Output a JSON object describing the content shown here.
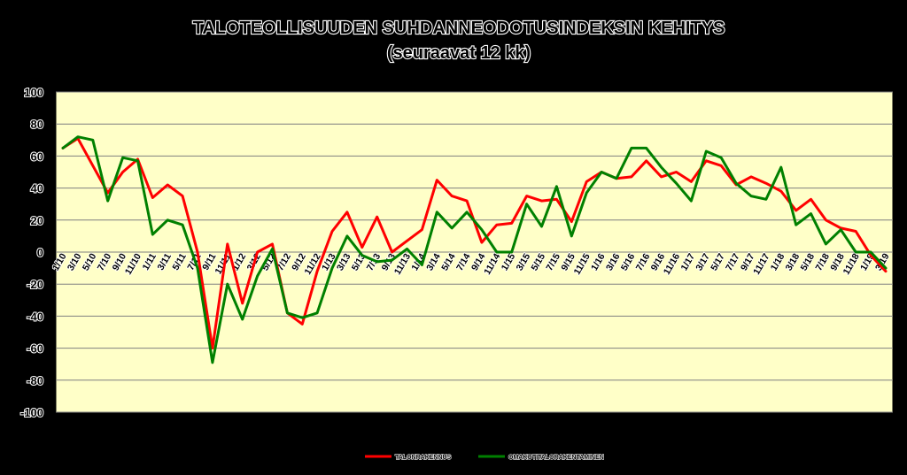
{
  "colors": {
    "background": "#000000",
    "plot_area": "#ffffc8",
    "grid": "#7f7f7f",
    "series_red": "#ff0000",
    "series_green": "#008000"
  },
  "chart_data": {
    "type": "line",
    "title": "TALOTEOLLISUUDEN SUHDANNEODOTUSINDEKSIN KEHITYS",
    "subtitle": "(seuraavat 12 kk)",
    "ylim": [
      -100,
      100
    ],
    "y_ticks": [
      100,
      80,
      60,
      40,
      20,
      0,
      -20,
      -40,
      -60,
      -80,
      -100
    ],
    "grid": true,
    "legend_position": "bottom",
    "x_labels": [
      "1/10",
      "3/10",
      "5/10",
      "7/10",
      "9/10",
      "11/10",
      "1/11",
      "3/11",
      "5/11",
      "7/11",
      "9/11",
      "11/11",
      "1/12",
      "3/12",
      "5/12",
      "7/12",
      "9/12",
      "11/12",
      "1/13",
      "3/13",
      "5/13",
      "7/13",
      "9/13",
      "11/13",
      "1/14",
      "3/14",
      "5/14",
      "7/14",
      "9/14",
      "11/14",
      "1/15",
      "3/15",
      "5/15",
      "7/15",
      "9/15",
      "11/15",
      "1/16",
      "3/16",
      "5/16",
      "7/16",
      "9/16",
      "11/16",
      "1/17",
      "3/17",
      "5/17",
      "7/17",
      "9/17",
      "11/17",
      "1/18",
      "3/18",
      "5/18",
      "7/18",
      "9/18",
      "11/18",
      "1/19",
      "3/19"
    ],
    "series": [
      {
        "name": "TALONRAKENNUS",
        "color": "#ff0000",
        "values": [
          65,
          71,
          54,
          37,
          50,
          58,
          34,
          42,
          35,
          0,
          -60,
          5,
          -32,
          0,
          5,
          -38,
          -45,
          -12,
          13,
          25,
          3,
          22,
          0,
          7,
          14,
          45,
          35,
          32,
          6,
          17,
          18,
          35,
          32,
          33,
          19,
          44,
          50,
          46,
          47,
          57,
          47,
          50,
          44,
          57,
          54,
          42,
          47,
          43,
          38,
          26,
          33,
          20,
          15,
          13,
          -2,
          -12
        ]
      },
      {
        "name": "OMAKOTITALORAKENTAMINEN",
        "color": "#008000",
        "values": [
          65,
          72,
          70,
          32,
          59,
          57,
          11,
          20,
          17,
          -10,
          -69,
          -20,
          -42,
          -15,
          2,
          -38,
          -41,
          -38,
          -10,
          10,
          -2,
          -6,
          -5,
          2,
          -8,
          25,
          15,
          25,
          14,
          0,
          0,
          30,
          16,
          41,
          10,
          37,
          50,
          46,
          65,
          65,
          53,
          43,
          32,
          63,
          59,
          43,
          35,
          33,
          53,
          17,
          24,
          5,
          14,
          0,
          0,
          -10
        ]
      }
    ]
  }
}
